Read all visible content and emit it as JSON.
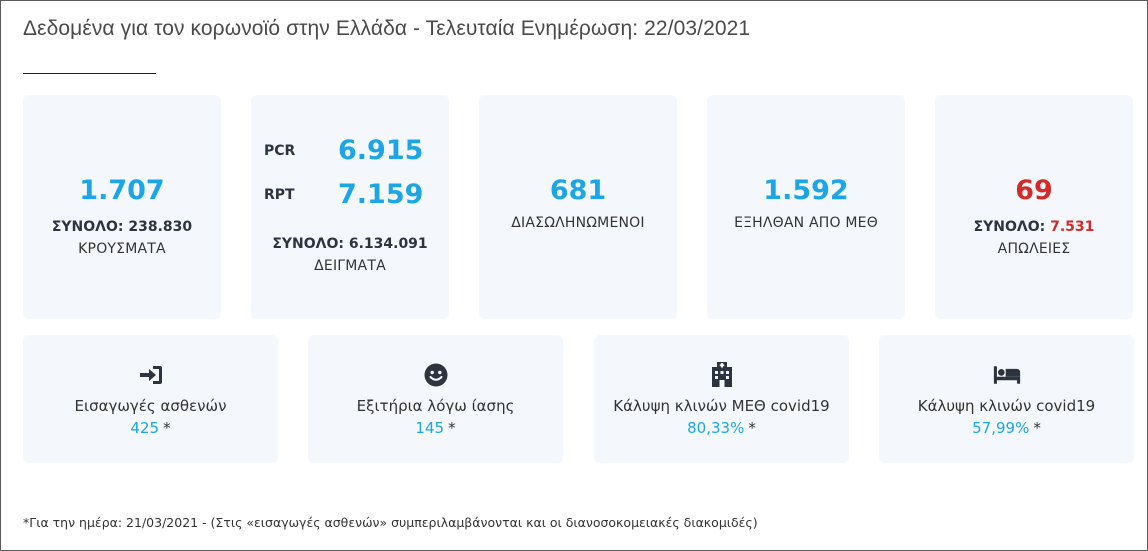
{
  "title": "Δεδομένα για τον κορωνοϊό στην Ελλάδα - Τελευταία Ενημέρωση: 22/03/2021",
  "cards": {
    "cases": {
      "value": "1.707",
      "total_prefix": "ΣΥΝΟΛΟ: ",
      "total_value": "238.830",
      "caption": "ΚΡΟΥΣΜΑΤΑ"
    },
    "tests": {
      "pcr_label": "PCR",
      "pcr_value": "6.915",
      "rpt_label": "RPT",
      "rpt_value": "7.159",
      "total_prefix": "ΣΥΝΟΛΟ: ",
      "total_value": "6.134.091",
      "caption": "ΔΕΙΓΜΑΤΑ"
    },
    "intubated": {
      "value": "681",
      "caption": "ΔΙΑΣΩΛΗΝΩΜΕΝΟΙ"
    },
    "icu_exits": {
      "value": "1.592",
      "caption": "ΕΞΗΛΘΑΝ ΑΠΟ ΜΕΘ"
    },
    "deaths": {
      "value": "69",
      "total_prefix": "ΣΥΝΟΛΟ: ",
      "total_value": "7.531",
      "caption": "ΑΠΩΛΕΙΕΣ"
    }
  },
  "stats": {
    "admissions": {
      "icon": "sign-in-icon",
      "label": "Εισαγωγές ασθενών",
      "value": "425",
      "star": "*"
    },
    "discharges": {
      "icon": "smile-icon",
      "label": "Εξιτήρια λόγω ίασης",
      "value": "145",
      "star": "*"
    },
    "icu_coverage": {
      "icon": "hospital-icon",
      "label": "Κάλυψη κλινών ΜΕΘ covid19",
      "value": "80,33%",
      "star": "*"
    },
    "bed_coverage": {
      "icon": "bed-icon",
      "label": "Κάλυψη κλινών covid19",
      "value": "57,99%",
      "star": "*"
    }
  },
  "footnote": "*Για την ημέρα: 21/03/2021 - (Στις «εισαγωγές ασθενών» συμπεριλαμβάνονται και οι διανοσοκομειακές διακομιδές)",
  "colors": {
    "accent": "#1ca6e8",
    "danger": "#d42a2a",
    "card_bg": "#f4f7fc",
    "icon": "#2d3440"
  }
}
